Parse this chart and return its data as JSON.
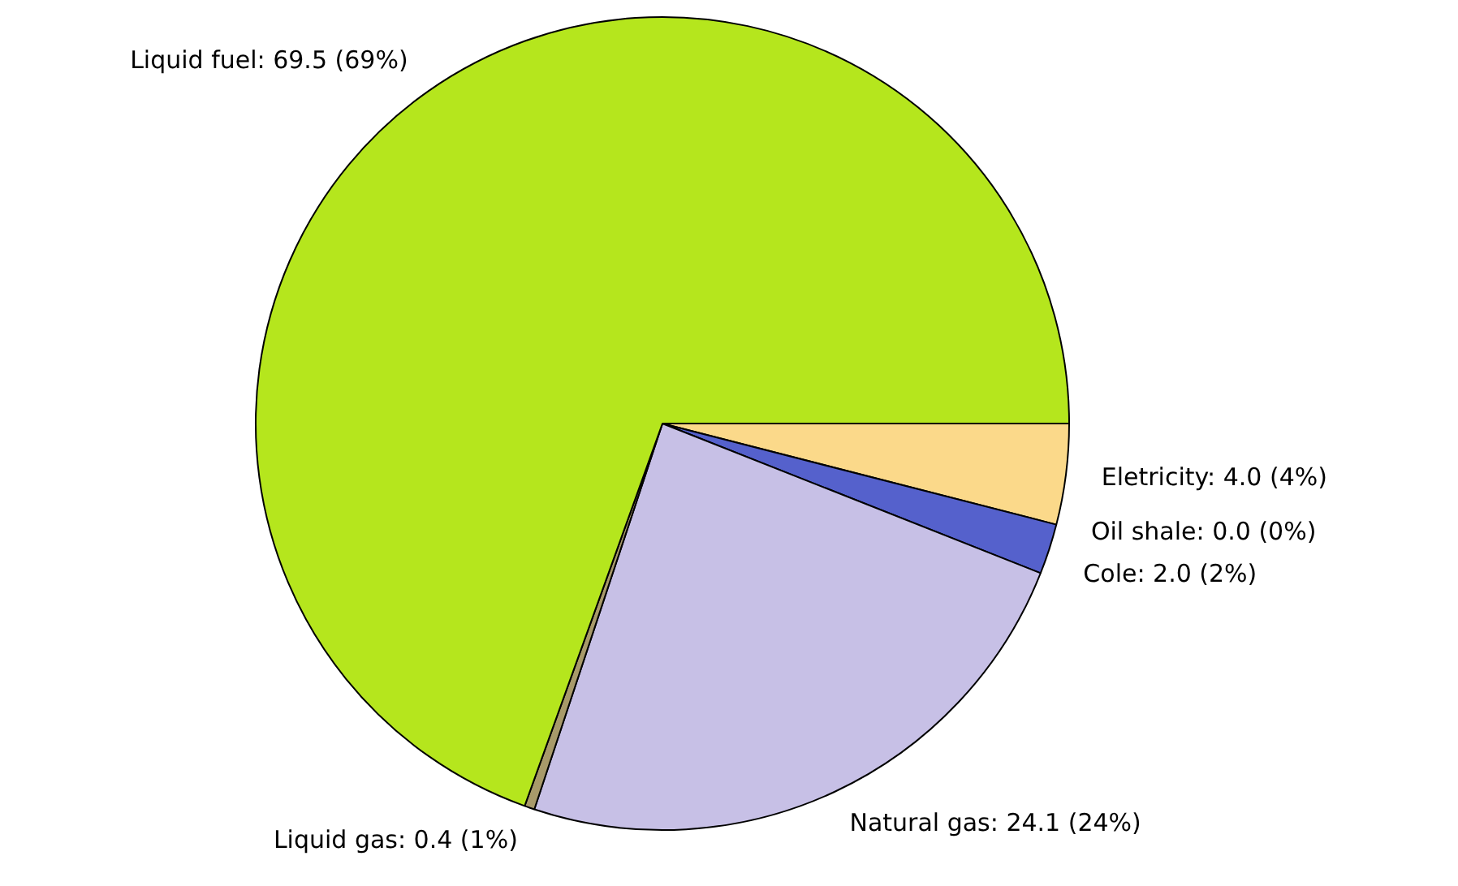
{
  "chart_data": {
    "type": "pie",
    "categories": [
      "Eletricity: 4.0 (4%)",
      "Oil shale: 0.0 (0%)",
      "Cole: 2.0 (2%)",
      "Natural gas: 24.1 (24%)",
      "Liquid gas: 0.4 (1%)",
      "Liquid fuel: 69.5 (69%)"
    ],
    "values": [
      4.0,
      0.0,
      2.0,
      24.1,
      0.4,
      69.5
    ],
    "colors": [
      "#fbd98a",
      "#8a8a8a",
      "#5561cc",
      "#c7c0e6",
      "#a89a6a",
      "#b5e61d"
    ],
    "legend": false
  }
}
